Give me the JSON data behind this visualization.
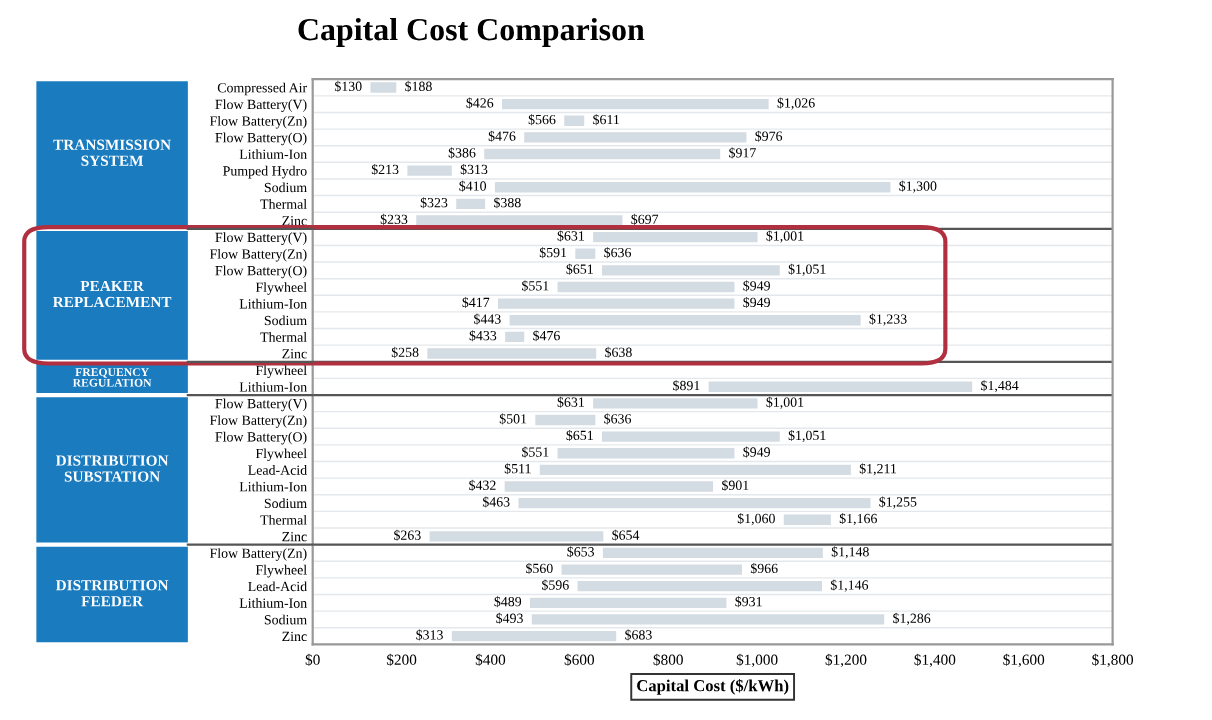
{
  "chart_data": {
    "type": "bar",
    "orientation": "horizontal",
    "title": "Capital Cost Comparison",
    "xlabel": "Capital Cost ($/kWh)",
    "categories": [
      "Compressed Air",
      "Flow Battery(V)",
      "Flow Battery(Zn)",
      "Flow Battery(O)",
      "Lithium-Ion",
      "Pumped Hydro",
      "Sodium",
      "Thermal",
      "Zinc",
      "Flow Battery(V)",
      "Flow Battery(Zn)",
      "Flow Battery(O)",
      "Flywheel",
      "Lithium-Ion",
      "Sodium",
      "Thermal",
      "Zinc",
      "Flywheel",
      "Lithium-Ion",
      "Flow Battery(V)",
      "Flow Battery(Zn)",
      "Flow Battery(O)",
      "Flywheel",
      "Lead-Acid",
      "Lithium-Ion",
      "Sodium",
      "Thermal",
      "Zinc",
      "Flow Battery(Zn)",
      "Flywheel",
      "Lead-Acid",
      "Lithium-Ion",
      "Sodium",
      "Zinc"
    ],
    "base": [
      130,
      426,
      566,
      476,
      386,
      213,
      410,
      323,
      233,
      631,
      591,
      651,
      551,
      417,
      443,
      433,
      258,
      null,
      891,
      631,
      501,
      651,
      551,
      511,
      432,
      463,
      1060,
      263,
      653,
      560,
      596,
      489,
      493,
      313
    ],
    "values": [
      58,
      600,
      45,
      500,
      531,
      100,
      890,
      65,
      464,
      370,
      45,
      400,
      398,
      532,
      790,
      43,
      380,
      null,
      593,
      370,
      135,
      400,
      398,
      700,
      469,
      792,
      106,
      391,
      495,
      406,
      550,
      442,
      793,
      370
    ],
    "color": "#d3dbe3",
    "xlim": [
      0,
      1800
    ],
    "xticks": [
      {
        "value": 0,
        "label": "$0"
      },
      {
        "value": 200,
        "label": "$200"
      },
      {
        "value": 400,
        "label": "$400"
      },
      {
        "value": 600,
        "label": "$600"
      },
      {
        "value": 800,
        "label": "$800"
      },
      {
        "value": 1000,
        "label": "$1,000"
      },
      {
        "value": 1200,
        "label": "$1,200"
      },
      {
        "value": 1400,
        "label": "$1,400"
      },
      {
        "value": 1600,
        "label": "$1,600"
      },
      {
        "value": 1800,
        "label": "$1,800"
      }
    ],
    "annotations": [
      "TRANSMISSION SYSTEM",
      "PEAKER REPLACEMENT",
      "FREQUENCY REGULATION",
      "DISTRIBUTION SUBSTATION",
      "DISTRIBUTION FEEDER",
      "$130",
      "$188",
      "$426",
      "$1,026",
      "$566",
      "$611",
      "$476",
      "$976",
      "$386",
      "$917",
      "$213",
      "$313",
      "$410",
      "$1,300",
      "$323",
      "$388",
      "$233",
      "$697",
      "$631",
      "$1,001",
      "$591",
      "$636",
      "$651",
      "$1,051",
      "$551",
      "$949",
      "$417",
      "$949",
      "$443",
      "$1,233",
      "$433",
      "$476",
      "$258",
      "$638",
      "$891",
      "$1,484",
      "$631",
      "$1,001",
      "$501",
      "$636",
      "$651",
      "$1,051",
      "$551",
      "$949",
      "$511",
      "$1,211",
      "$432",
      "$901",
      "$463",
      "$1,255",
      "$1,060",
      "$1,166",
      "$263",
      "$654",
      "$653",
      "$1,148",
      "$560",
      "$966",
      "$596",
      "$1,146",
      "$489",
      "$931",
      "$493",
      "$1,286",
      "$313",
      "$683"
    ]
  }
}
